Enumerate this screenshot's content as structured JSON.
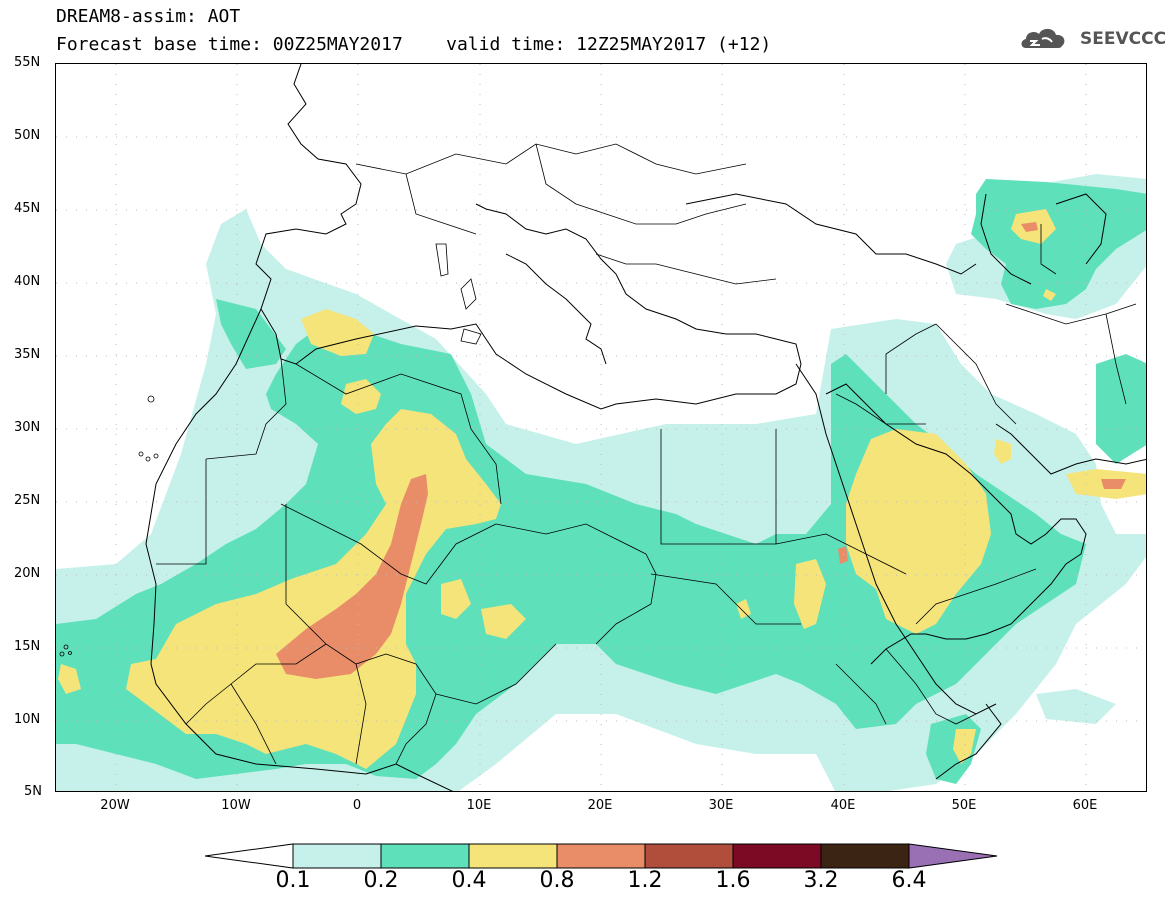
{
  "header": {
    "title_line1": "DREAM8-assim: AOT",
    "title_line2": "Forecast base time: 00Z25MAY2017    valid time: 12Z25MAY2017 (+12)"
  },
  "logo": {
    "text": "SEEVCCC",
    "icon": "cloud-icon"
  },
  "map": {
    "lat_labels": [
      "55N",
      "50N",
      "45N",
      "40N",
      "35N",
      "30N",
      "25N",
      "20N",
      "15N",
      "10N",
      "5N"
    ],
    "lon_labels": [
      "20W",
      "10W",
      "0",
      "10E",
      "20E",
      "30E",
      "40E",
      "50E",
      "60E"
    ],
    "extent": {
      "lon_min": -25,
      "lon_max": 65,
      "lat_min": 5,
      "lat_max": 55
    }
  },
  "colorbar": {
    "labels": [
      "0.1",
      "0.2",
      "0.4",
      "0.8",
      "1.2",
      "1.6",
      "3.2",
      "6.4"
    ],
    "colors": {
      "below": "#ffffff",
      "0.1-0.2": "#c6f1ea",
      "0.2-0.4": "#5ee0bb",
      "0.4-0.8": "#f5e47a",
      "0.8-1.2": "#e98d69",
      "1.2-1.6": "#b14d3b",
      "1.6-3.2": "#7d0a24",
      "3.2-6.4": "#3b2414",
      "above": "#9a70b4"
    }
  }
}
